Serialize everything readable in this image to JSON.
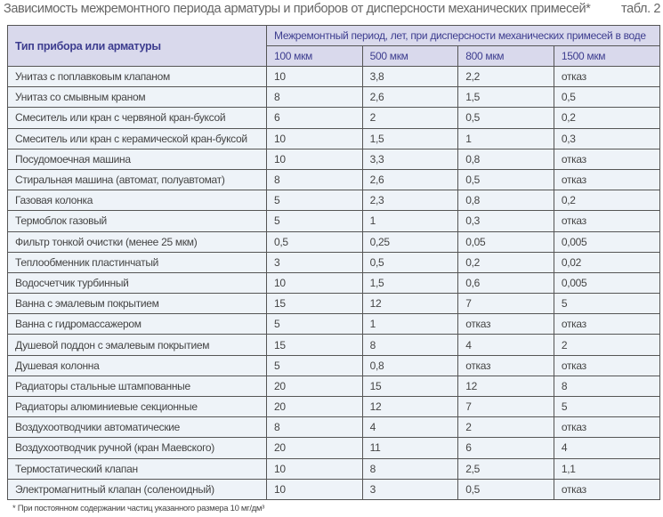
{
  "title": "Зависимость межремонтного периода арматуры и приборов от дисперсности механических примесей*",
  "table_no": "табл. 2",
  "header": {
    "device": "Тип прибора или арматуры",
    "period": "Межремонтный период, лет, при дисперсности механических примесей в воде",
    "sizes": [
      "100 мкм",
      "500 мкм",
      "800 мкм",
      "1500 мкм"
    ]
  },
  "rows": [
    [
      "Унитаз с поплавковым клапаном",
      "10",
      "3,8",
      "2,2",
      "отказ"
    ],
    [
      "Унитаз со смывным краном",
      "8",
      "2,6",
      "1,5",
      "0,5"
    ],
    [
      "Смеситель или кран с червяной кран-буксой",
      "6",
      "2",
      "0,5",
      "0,2"
    ],
    [
      "Смеситель или кран с керамической кран-буксой",
      "10",
      "1,5",
      "1",
      "0,3"
    ],
    [
      "Посудомоечная машина",
      "10",
      "3,3",
      "0,8",
      "отказ"
    ],
    [
      "Стиральная машина (автомат, полуавтомат)",
      "8",
      "2,6",
      "0,5",
      "отказ"
    ],
    [
      "Газовая колонка",
      "5",
      "2,3",
      "0,8",
      "0,2"
    ],
    [
      "Термоблок газовый",
      "5",
      "1",
      "0,3",
      "отказ"
    ],
    [
      "Фильтр тонкой очистки (менее 25 мкм)",
      "0,5",
      "0,25",
      "0,05",
      "0,005"
    ],
    [
      "Теплообменник пластинчатый",
      "3",
      "0,5",
      "0,2",
      "0,02"
    ],
    [
      "Водосчетчик турбинный",
      "10",
      "1,5",
      "0,6",
      "0,005"
    ],
    [
      "Ванна с эмалевым покрытием",
      "15",
      "12",
      "7",
      "5"
    ],
    [
      "Ванна с гидромассажером",
      "5",
      "1",
      "отказ",
      "отказ"
    ],
    [
      "Душевой поддон с эмалевым покрытием",
      "15",
      "8",
      "4",
      "2"
    ],
    [
      "Душевая колонна",
      "5",
      "0,8",
      "отказ",
      "отказ"
    ],
    [
      "Радиаторы стальные штампованные",
      "20",
      "15",
      "12",
      "8"
    ],
    [
      "Радиаторы алюминиевые секционные",
      "20",
      "12",
      "7",
      "5"
    ],
    [
      "Воздухоотводчики автоматические",
      "8",
      "4",
      "2",
      "отказ"
    ],
    [
      "Воздухоотводчик ручной (кран Маевского)",
      "20",
      "11",
      "6",
      "4"
    ],
    [
      "Термостатический клапан",
      "10",
      "8",
      "2,5",
      "1,1"
    ],
    [
      "Электромагнитный клапан (соленоидный)",
      "10",
      "3",
      "0,5",
      "отказ"
    ]
  ],
  "footnote": "* При постоянном содержании частиц указанного размера 10 мг/дм³"
}
